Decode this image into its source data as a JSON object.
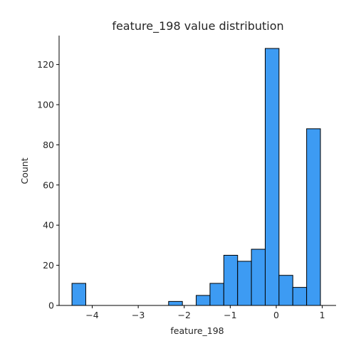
{
  "chart_data": {
    "type": "bar",
    "title": "feature_198 value distribution",
    "xlabel": "feature_198",
    "ylabel": "Count",
    "xlim": [
      -4.72,
      1.3
    ],
    "ylim": [
      0,
      134.4
    ],
    "x_ticks": [
      -4,
      -3,
      -2,
      -1,
      0,
      1
    ],
    "x_tick_labels": [
      "−4",
      "−3",
      "−2",
      "−1",
      "0",
      "1"
    ],
    "y_ticks": [
      0,
      20,
      40,
      60,
      80,
      100,
      120
    ],
    "y_tick_labels": [
      "0",
      "20",
      "40",
      "60",
      "80",
      "100",
      "120"
    ],
    "bin_edges": [
      -4.44,
      -4.14,
      -3.84,
      -3.54,
      -3.24,
      -2.94,
      -2.64,
      -2.34,
      -2.04,
      -1.74,
      -1.44,
      -1.14,
      -0.84,
      -0.54,
      -0.24,
      0.06,
      0.36,
      0.66,
      0.96
    ],
    "counts": [
      11,
      0,
      0,
      0,
      0,
      0,
      0,
      2,
      0,
      5,
      11,
      25,
      22,
      28,
      128,
      15,
      9,
      88
    ],
    "bar_color": "#3d9bf3",
    "edge_color": "#000000",
    "grid": false,
    "spines": "left-bottom"
  }
}
